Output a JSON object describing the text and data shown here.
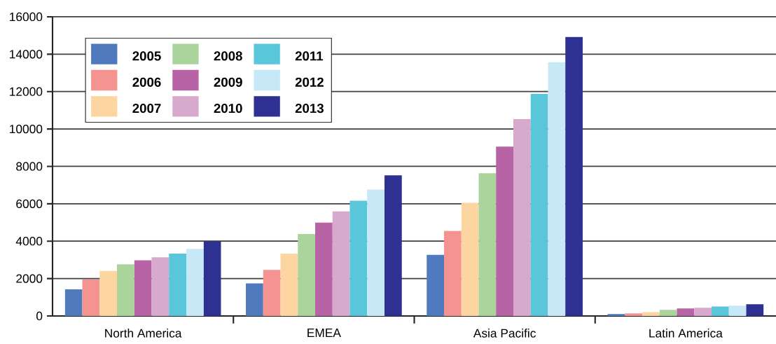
{
  "chart_data": {
    "type": "bar",
    "categories": [
      "North America",
      "EMEA",
      "Asia Pacific",
      "Latin America"
    ],
    "series": [
      {
        "name": "2005",
        "color": "#4f7abe",
        "values": [
          1420,
          1740,
          3270,
          100
        ]
      },
      {
        "name": "2006",
        "color": "#f59390",
        "values": [
          1950,
          2460,
          4550,
          140
        ]
      },
      {
        "name": "2007",
        "color": "#fdd5a0",
        "values": [
          2410,
          3330,
          6050,
          210
        ]
      },
      {
        "name": "2008",
        "color": "#aad49b",
        "values": [
          2760,
          4380,
          7630,
          330
        ]
      },
      {
        "name": "2009",
        "color": "#b863a6",
        "values": [
          2980,
          4990,
          9060,
          400
        ]
      },
      {
        "name": "2010",
        "color": "#d7a9cd",
        "values": [
          3140,
          5590,
          10530,
          440
        ]
      },
      {
        "name": "2011",
        "color": "#59c6d9",
        "values": [
          3330,
          6160,
          11880,
          510
        ]
      },
      {
        "name": "2012",
        "color": "#c6e8f7",
        "values": [
          3590,
          6760,
          13570,
          550
        ]
      },
      {
        "name": "2013",
        "color": "#2e3192",
        "values": [
          3990,
          7520,
          14920,
          630
        ]
      }
    ],
    "ylim": [
      0,
      16000
    ],
    "yticks": [
      0,
      2000,
      4000,
      6000,
      8000,
      10000,
      12000,
      14000,
      16000
    ],
    "grid": "y",
    "legend": "top left"
  }
}
